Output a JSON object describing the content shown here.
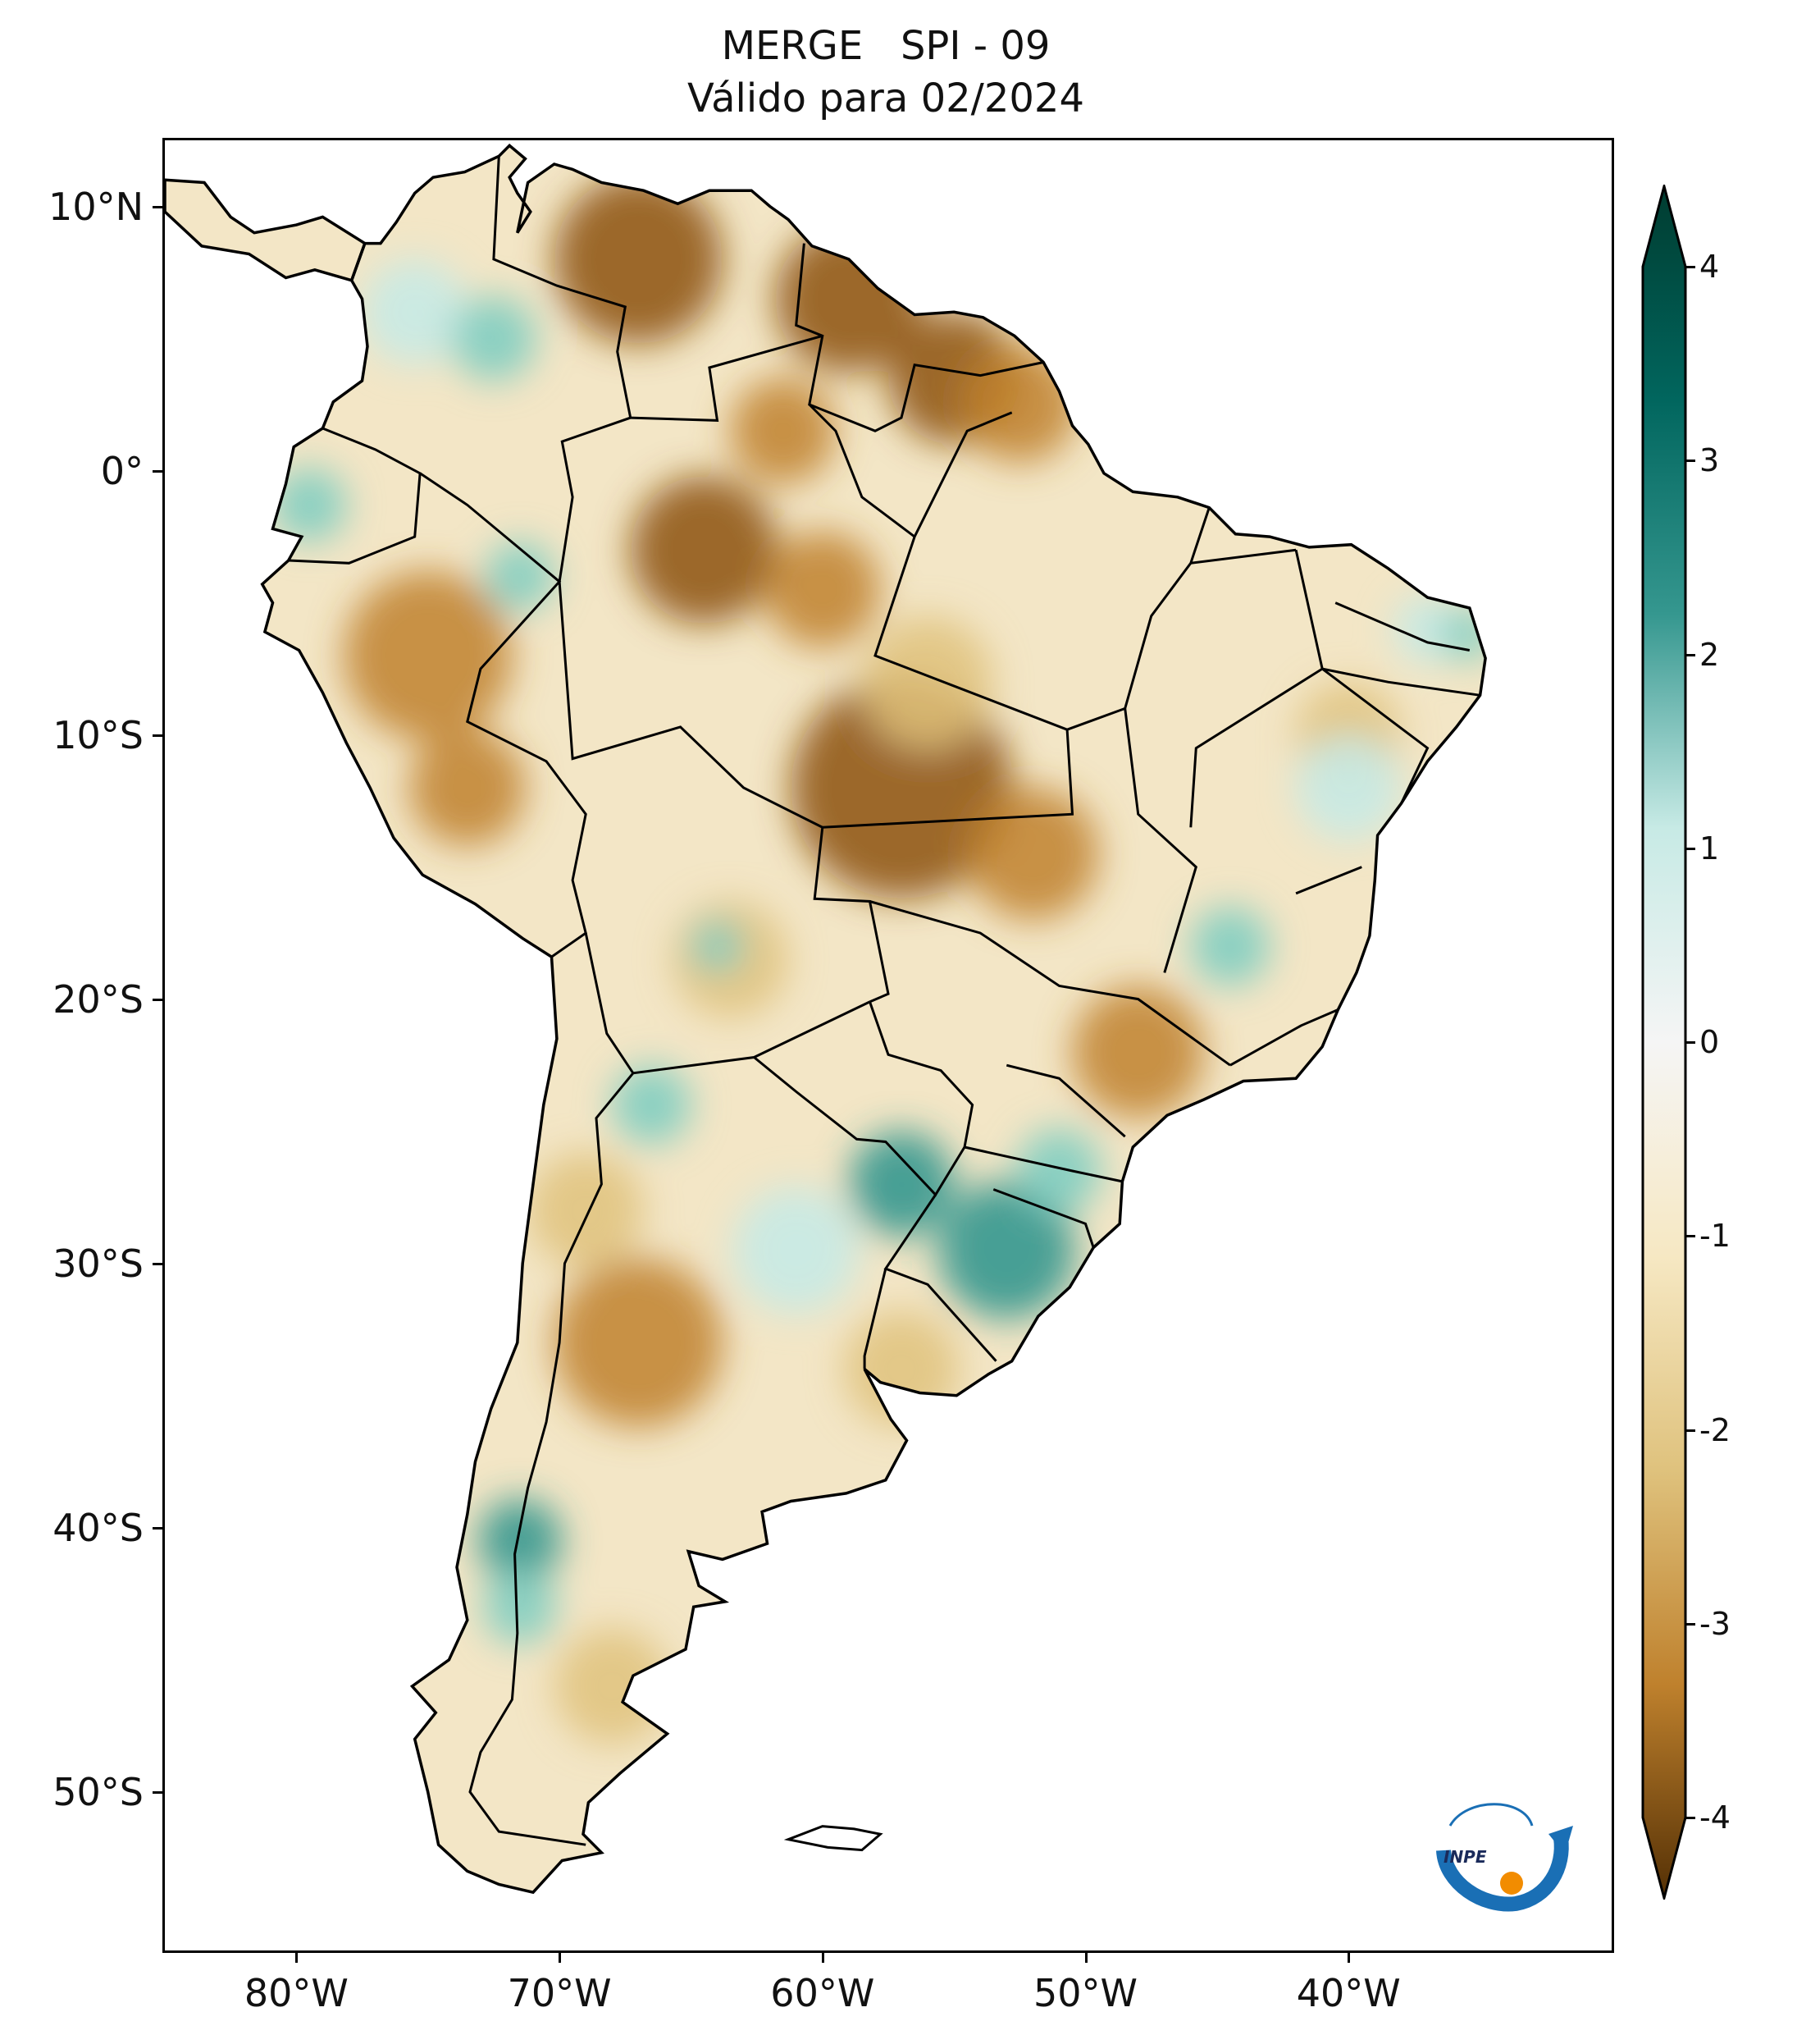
{
  "title": {
    "line1": "MERGE   SPI - 09",
    "line2": "Válido para 02/2024"
  },
  "map": {
    "region": "South America",
    "lon_range": [
      -85,
      -30
    ],
    "lat_range": [
      -56,
      12.5
    ],
    "lat_ticks": [
      {
        "value": 10,
        "label": "10°N"
      },
      {
        "value": 0,
        "label": "0°"
      },
      {
        "value": -10,
        "label": "10°S"
      },
      {
        "value": -20,
        "label": "20°S"
      },
      {
        "value": -30,
        "label": "30°S"
      },
      {
        "value": -40,
        "label": "40°S"
      },
      {
        "value": -50,
        "label": "50°S"
      }
    ],
    "lon_ticks": [
      {
        "value": -80,
        "label": "80°W"
      },
      {
        "value": -70,
        "label": "70°W"
      },
      {
        "value": -60,
        "label": "60°W"
      },
      {
        "value": -50,
        "label": "50°W"
      },
      {
        "value": -40,
        "label": "40°W"
      }
    ]
  },
  "colorbar": {
    "min": -4,
    "max": 4,
    "ticks": [
      {
        "value": 4,
        "label": "4"
      },
      {
        "value": 3,
        "label": "3"
      },
      {
        "value": 2,
        "label": "2"
      },
      {
        "value": 1,
        "label": "1"
      },
      {
        "value": 0,
        "label": "0"
      },
      {
        "value": -1,
        "label": "-1"
      },
      {
        "value": -2,
        "label": "-2"
      },
      {
        "value": -3,
        "label": "-3"
      },
      {
        "value": -4,
        "label": "-4"
      }
    ],
    "colors": {
      "dry_extreme": "#543005",
      "dry_strong": "#8c510a",
      "dry_moderate": "#bf812d",
      "dry_mild": "#dfc27d",
      "dry_slight": "#f6e8c3",
      "neutral": "#f5f5f5",
      "wet_slight": "#c7eae5",
      "wet_mild": "#80cdc1",
      "wet_moderate": "#35978f",
      "wet_strong": "#01665e",
      "wet_extreme": "#003c30"
    }
  },
  "logo": {
    "text": "INPE",
    "color_blue": "#1a6fb5",
    "color_orange": "#f28c00"
  }
}
